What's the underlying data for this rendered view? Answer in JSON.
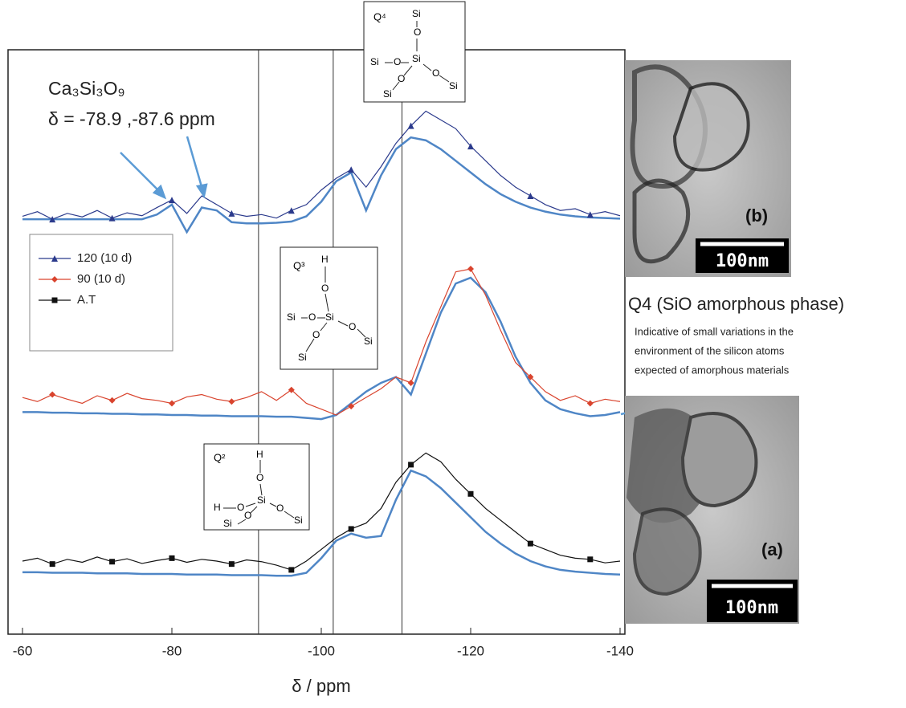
{
  "chart_data": {
    "type": "line",
    "x_label": "δ / ppm",
    "xlim": [
      -60,
      -140
    ],
    "xticks": [
      -60,
      -80,
      -100,
      -120,
      -140
    ],
    "ylim": [
      0,
      100
    ],
    "reference_lines": [
      -91.6,
      -101.6,
      -110.8
    ],
    "legend_position": "upper left",
    "fit_color": "#4f86c6",
    "x": [
      -60,
      -62,
      -64,
      -66,
      -68,
      -70,
      -72,
      -74,
      -76,
      -78,
      -80,
      -82,
      -84,
      -86,
      -88,
      -90,
      -92,
      -94,
      -96,
      -98,
      -100,
      -102,
      -104,
      -106,
      -108,
      -110,
      -112,
      -114,
      -116,
      -118,
      -120,
      -122,
      -124,
      -126,
      -128,
      -130,
      -132,
      -134,
      -136,
      -138,
      -140
    ],
    "series": [
      {
        "name": "120 (10 d)",
        "color": "#2b3a8c",
        "marker": "triangle",
        "values": [
          71.5,
          72.3,
          71.0,
          72.0,
          71.4,
          72.5,
          71.2,
          72.1,
          71.6,
          73.0,
          74.3,
          72.0,
          75.0,
          73.5,
          72.0,
          71.5,
          71.8,
          71.2,
          72.5,
          73.5,
          76.0,
          78.0,
          79.5,
          76.5,
          80.0,
          84.0,
          87.0,
          89.5,
          88.0,
          86.5,
          83.5,
          81.0,
          78.5,
          76.5,
          75.0,
          73.5,
          72.5,
          72.8,
          71.8,
          72.3,
          71.6
        ],
        "fit": [
          71.0,
          71.0,
          71.0,
          71.0,
          71.0,
          71.0,
          71.0,
          71.0,
          71.0,
          71.8,
          73.5,
          68.8,
          73.0,
          72.5,
          70.5,
          70.3,
          70.3,
          70.4,
          70.6,
          71.5,
          74.0,
          77.5,
          79.0,
          72.5,
          78.5,
          83.0,
          85.0,
          84.5,
          83.0,
          81.0,
          79.0,
          77.0,
          75.3,
          74.0,
          73.0,
          72.3,
          71.8,
          71.5,
          71.3,
          71.2,
          71.1
        ]
      },
      {
        "name": "90 (10 d)",
        "color": "#d9442e",
        "marker": "diamond",
        "values": [
          40.5,
          39.8,
          41.0,
          40.2,
          39.5,
          40.8,
          40.0,
          41.2,
          40.3,
          40.0,
          39.5,
          40.6,
          41.0,
          40.2,
          39.8,
          40.5,
          41.5,
          40.0,
          41.8,
          39.5,
          38.5,
          37.5,
          39.0,
          40.5,
          42.0,
          44.0,
          43.0,
          50.0,
          56.0,
          62.0,
          62.5,
          58.0,
          52.0,
          46.5,
          44.0,
          41.5,
          40.0,
          40.8,
          39.5,
          40.2,
          39.8
        ],
        "fit": [
          38.0,
          38.0,
          37.9,
          37.9,
          37.8,
          37.8,
          37.7,
          37.7,
          37.6,
          37.6,
          37.5,
          37.5,
          37.4,
          37.4,
          37.3,
          37.3,
          37.3,
          37.2,
          37.2,
          37.0,
          36.8,
          37.5,
          39.5,
          41.5,
          43.0,
          44.0,
          41.0,
          48.0,
          55.0,
          60.0,
          61.0,
          58.5,
          53.5,
          47.5,
          43.0,
          40.0,
          38.5,
          37.8,
          37.3,
          37.5,
          38.0
        ]
      },
      {
        "name": "A.T",
        "color": "#111111",
        "marker": "square",
        "values": [
          12.5,
          13.0,
          12.0,
          12.8,
          12.3,
          13.2,
          12.4,
          12.9,
          12.1,
          12.6,
          13.0,
          12.3,
          12.8,
          12.5,
          12.0,
          12.7,
          12.4,
          11.8,
          11.0,
          12.5,
          14.5,
          16.5,
          18.0,
          19.0,
          21.5,
          26.0,
          29.0,
          31.0,
          29.5,
          26.5,
          24.0,
          21.5,
          19.5,
          17.5,
          15.5,
          14.5,
          13.5,
          13.0,
          12.8,
          12.2,
          12.5
        ],
        "fit": [
          10.6,
          10.6,
          10.5,
          10.5,
          10.5,
          10.4,
          10.4,
          10.4,
          10.3,
          10.3,
          10.3,
          10.2,
          10.2,
          10.2,
          10.1,
          10.1,
          10.1,
          10.0,
          10.0,
          10.5,
          13.0,
          16.0,
          17.2,
          16.5,
          16.8,
          23.0,
          28.0,
          27.0,
          25.0,
          22.5,
          20.0,
          17.5,
          15.5,
          13.8,
          12.5,
          11.6,
          11.0,
          10.7,
          10.5,
          10.3,
          10.2
        ]
      }
    ],
    "annotations": {
      "compound": "Ca₃Si₃O₉",
      "shifts": "δ = -78.9 ,-87.6 ppm"
    }
  },
  "diagrams": [
    {
      "label": "Q⁴",
      "atoms": [
        "Si",
        "O",
        "Si",
        "Si",
        "O",
        "O",
        "Si",
        "O",
        "Si"
      ]
    },
    {
      "label": "Q³",
      "atoms": [
        "H",
        "O",
        "Si",
        "Si",
        "O",
        "O",
        "Si",
        "O",
        "Si"
      ]
    },
    {
      "label": "Q²",
      "atoms": [
        "H",
        "O",
        "Si",
        "H",
        "O",
        "O",
        "Si",
        "O",
        "Si"
      ]
    }
  ],
  "images": [
    {
      "label": "(b)",
      "scale": "100nm"
    },
    {
      "label": "(a)",
      "scale": "100nm"
    }
  ],
  "side_note": {
    "title": "Q4 (SiO amorphous phase)",
    "lines": [
      "Indicative of small variations in the",
      "environment of the silicon atoms",
      "expected of amorphous materials"
    ]
  }
}
